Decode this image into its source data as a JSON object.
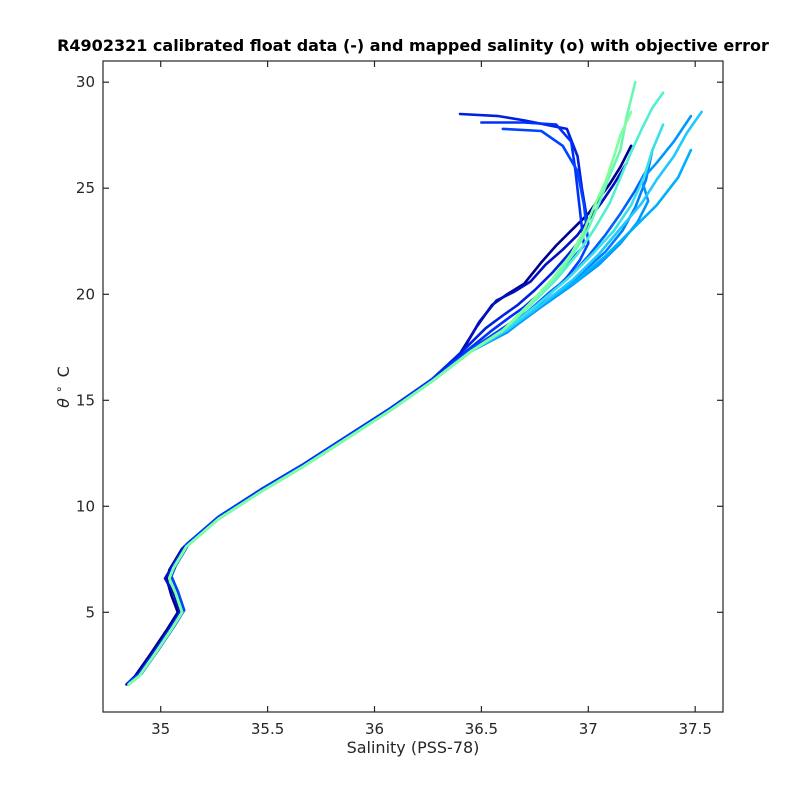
{
  "chart_data": {
    "type": "line",
    "title": "R4902321 calibrated float data (-) and mapped salinity (o) with objective error",
    "xlabel": "Salinity (PSS-78)",
    "ylabel_symbol": "θ",
    "ylabel_unit": "C",
    "xlim": [
      34.73,
      37.63
    ],
    "ylim": [
      0.3,
      31.0
    ],
    "xticks": [
      35,
      35.5,
      36,
      36.5,
      37,
      37.5
    ],
    "xtick_labels": [
      "35",
      "35.5",
      "36",
      "36.5",
      "37",
      "37.5"
    ],
    "yticks": [
      5,
      10,
      15,
      20,
      25,
      30
    ],
    "ytick_labels": [
      "5",
      "10",
      "15",
      "20",
      "25",
      "30"
    ],
    "grid": false,
    "legend": "none",
    "colormap": [
      "#00008f",
      "#0020e0",
      "#0060ff",
      "#00a0ff",
      "#20d0ff",
      "#5cf5c8",
      "#80ff9c"
    ],
    "series": [
      {
        "color": "#00008f",
        "x": [
          34.84,
          34.88,
          34.95,
          35.03,
          35.08,
          35.05,
          35.03,
          35.04,
          35.1,
          35.25,
          35.45,
          35.65,
          35.85,
          36.05,
          36.25,
          36.4,
          36.48,
          36.55,
          36.62,
          36.7,
          36.78,
          36.85,
          36.92,
          37.0,
          37.05,
          37.1,
          37.15,
          37.2
        ],
        "y": [
          1.6,
          2.0,
          3.0,
          4.2,
          5.0,
          5.8,
          6.5,
          7.0,
          8.0,
          9.3,
          10.6,
          11.8,
          13.1,
          14.4,
          15.8,
          17.2,
          18.5,
          19.5,
          20.0,
          20.5,
          21.5,
          22.3,
          23.0,
          23.8,
          24.5,
          25.2,
          26.0,
          27.0
        ]
      },
      {
        "color": "#0010c0",
        "x": [
          34.84,
          34.89,
          34.96,
          35.04,
          35.09,
          35.06,
          35.02,
          35.05,
          35.11,
          35.26,
          35.46,
          35.66,
          35.86,
          36.06,
          36.26,
          36.41,
          36.49,
          36.57,
          36.65,
          36.73,
          36.8,
          36.88,
          36.95,
          37.0,
          37.06,
          37.12,
          37.18
        ],
        "y": [
          1.6,
          2.0,
          3.0,
          4.2,
          5.0,
          5.9,
          6.6,
          7.1,
          8.1,
          9.4,
          10.7,
          11.9,
          13.2,
          14.5,
          15.9,
          17.3,
          18.7,
          19.7,
          20.1,
          20.6,
          21.4,
          22.1,
          22.8,
          23.5,
          24.3,
          25.2,
          26.2
        ]
      },
      {
        "color": "#0020e0",
        "x": [
          34.85,
          34.9,
          34.97,
          35.05,
          35.1,
          35.07,
          35.04,
          35.06,
          35.12,
          35.27,
          35.47,
          35.67,
          35.87,
          36.07,
          36.27,
          36.42,
          36.52,
          36.6,
          36.67,
          36.75,
          36.83,
          36.9,
          36.95,
          37.0,
          36.97,
          36.95,
          36.9,
          36.7,
          36.58,
          36.4
        ],
        "y": [
          1.7,
          2.1,
          3.1,
          4.3,
          5.1,
          6.0,
          6.7,
          7.2,
          8.2,
          9.5,
          10.8,
          12.0,
          13.3,
          14.6,
          16.0,
          17.4,
          18.4,
          19.0,
          19.5,
          20.2,
          21.0,
          21.8,
          22.4,
          23.2,
          25.0,
          26.5,
          27.8,
          28.2,
          28.4,
          28.5
        ]
      },
      {
        "color": "#0030ff",
        "x": [
          34.85,
          34.9,
          34.97,
          35.05,
          35.1,
          35.07,
          35.04,
          35.06,
          35.12,
          35.27,
          35.47,
          35.67,
          35.87,
          36.07,
          36.27,
          36.44,
          36.55,
          36.63,
          36.7,
          36.78,
          36.85,
          36.92,
          36.98,
          36.96,
          36.94,
          36.92,
          36.85,
          36.7,
          36.5
        ],
        "y": [
          1.7,
          2.1,
          3.1,
          4.3,
          5.1,
          6.0,
          6.7,
          7.2,
          8.2,
          9.5,
          10.8,
          12.0,
          13.3,
          14.6,
          16.0,
          17.4,
          18.3,
          18.9,
          19.4,
          20.1,
          20.9,
          21.6,
          22.3,
          24.0,
          25.8,
          27.2,
          28.0,
          28.1,
          28.1
        ]
      },
      {
        "color": "#0044ff",
        "x": [
          34.85,
          34.91,
          34.98,
          35.06,
          35.11,
          35.08,
          35.05,
          35.07,
          35.13,
          35.28,
          35.48,
          35.68,
          35.88,
          36.08,
          36.28,
          36.45,
          36.57,
          36.66,
          36.74,
          36.82,
          36.9,
          36.96,
          37.0,
          36.98,
          36.95,
          36.88,
          36.78,
          36.6
        ],
        "y": [
          1.7,
          2.1,
          3.1,
          4.3,
          5.1,
          6.0,
          6.7,
          7.2,
          8.2,
          9.5,
          10.8,
          12.0,
          13.3,
          14.6,
          16.0,
          17.4,
          18.2,
          18.8,
          19.3,
          20.0,
          20.8,
          21.6,
          22.4,
          24.2,
          25.8,
          27.0,
          27.7,
          27.8
        ]
      },
      {
        "color": "#0060ff",
        "x": [
          34.85,
          34.9,
          34.97,
          35.05,
          35.1,
          35.07,
          35.04,
          35.06,
          35.12,
          35.27,
          35.47,
          35.67,
          35.87,
          36.07,
          36.27,
          36.45,
          36.6,
          36.72,
          36.82,
          36.92,
          37.0,
          37.08,
          37.15,
          37.22,
          37.28
        ],
        "y": [
          1.6,
          2.0,
          3.0,
          4.2,
          5.0,
          5.9,
          6.6,
          7.1,
          8.1,
          9.4,
          10.7,
          11.9,
          13.2,
          14.5,
          15.9,
          17.3,
          18.2,
          19.2,
          20.1,
          20.9,
          21.8,
          22.8,
          23.8,
          24.9,
          26.0
        ]
      },
      {
        "color": "#0080ff",
        "x": [
          34.85,
          34.9,
          34.97,
          35.05,
          35.1,
          35.07,
          35.04,
          35.06,
          35.12,
          35.27,
          35.47,
          35.67,
          35.87,
          36.07,
          36.27,
          36.45,
          36.62,
          36.76,
          36.88,
          36.98,
          37.08,
          37.16,
          37.22,
          37.27,
          37.3
        ],
        "y": [
          1.6,
          2.0,
          3.0,
          4.2,
          5.0,
          5.9,
          6.6,
          7.1,
          8.1,
          9.4,
          10.7,
          11.9,
          13.2,
          14.5,
          15.9,
          17.3,
          18.2,
          19.3,
          20.2,
          21.1,
          22.0,
          23.0,
          24.1,
          25.4,
          26.8
        ]
      },
      {
        "color": "#0098ff",
        "x": [
          34.85,
          34.9,
          34.97,
          35.05,
          35.1,
          35.07,
          35.04,
          35.06,
          35.12,
          35.27,
          35.47,
          35.67,
          35.87,
          36.07,
          36.27,
          36.45,
          36.63,
          36.78,
          36.92,
          37.05,
          37.15,
          37.23,
          37.28,
          37.25,
          37.32,
          37.4,
          37.48
        ],
        "y": [
          1.6,
          2.0,
          3.0,
          4.2,
          5.0,
          5.9,
          6.6,
          7.1,
          8.1,
          9.4,
          10.7,
          11.9,
          13.2,
          14.5,
          15.9,
          17.3,
          18.3,
          19.4,
          20.4,
          21.4,
          22.4,
          23.4,
          24.4,
          25.4,
          26.2,
          27.2,
          28.4
        ]
      },
      {
        "color": "#00b0ff",
        "x": [
          34.85,
          34.9,
          34.97,
          35.05,
          35.1,
          35.07,
          35.04,
          35.06,
          35.12,
          35.27,
          35.47,
          35.67,
          35.87,
          36.07,
          36.27,
          36.45,
          36.62,
          36.78,
          36.94,
          37.08,
          37.2,
          37.32,
          37.42,
          37.48
        ],
        "y": [
          1.6,
          2.0,
          3.0,
          4.2,
          5.0,
          5.9,
          6.6,
          7.1,
          8.1,
          9.4,
          10.7,
          11.9,
          13.2,
          14.5,
          15.9,
          17.3,
          18.3,
          19.5,
          20.6,
          21.8,
          23.0,
          24.2,
          25.5,
          26.8
        ]
      },
      {
        "color": "#20c8ff",
        "x": [
          34.85,
          34.9,
          34.97,
          35.05,
          35.1,
          35.07,
          35.04,
          35.06,
          35.12,
          35.27,
          35.47,
          35.67,
          35.87,
          36.07,
          36.27,
          36.45,
          36.62,
          36.78,
          36.93,
          37.05,
          37.15,
          37.25,
          37.32,
          37.4,
          37.46,
          37.53
        ],
        "y": [
          1.6,
          2.0,
          3.0,
          4.2,
          5.0,
          5.9,
          6.6,
          7.1,
          8.1,
          9.4,
          10.7,
          11.9,
          13.2,
          14.5,
          15.9,
          17.3,
          18.3,
          19.5,
          20.7,
          21.9,
          23.1,
          24.3,
          25.4,
          26.5,
          27.6,
          28.6
        ]
      },
      {
        "color": "#3ae0e8",
        "x": [
          34.85,
          34.9,
          34.97,
          35.05,
          35.1,
          35.07,
          35.04,
          35.06,
          35.12,
          35.27,
          35.47,
          35.67,
          35.87,
          36.07,
          36.27,
          36.45,
          36.61,
          36.76,
          36.9,
          37.02,
          37.12,
          37.2,
          37.26,
          37.3,
          37.35
        ],
        "y": [
          1.6,
          2.0,
          3.0,
          4.2,
          5.0,
          5.9,
          6.6,
          7.1,
          8.1,
          9.4,
          10.7,
          11.9,
          13.2,
          14.5,
          15.9,
          17.3,
          18.3,
          19.5,
          20.7,
          21.9,
          23.0,
          24.2,
          25.5,
          26.8,
          28.0
        ]
      },
      {
        "color": "#50f0d0",
        "x": [
          34.85,
          34.9,
          34.97,
          35.05,
          35.1,
          35.07,
          35.04,
          35.06,
          35.12,
          35.27,
          35.47,
          35.67,
          35.87,
          36.07,
          36.27,
          36.45,
          36.6,
          36.73,
          36.85,
          36.95,
          37.03,
          37.1,
          37.15,
          37.2,
          37.25,
          37.3,
          37.35
        ],
        "y": [
          1.6,
          2.0,
          3.0,
          4.2,
          5.0,
          5.9,
          6.6,
          7.1,
          8.1,
          9.4,
          10.7,
          11.9,
          13.2,
          14.5,
          15.9,
          17.3,
          18.3,
          19.5,
          20.7,
          21.9,
          23.1,
          24.3,
          25.5,
          26.7,
          27.8,
          28.8,
          29.5
        ]
      },
      {
        "color": "#68f8b4",
        "x": [
          34.85,
          34.9,
          34.97,
          35.05,
          35.1,
          35.07,
          35.04,
          35.06,
          35.12,
          35.27,
          35.47,
          35.67,
          35.87,
          36.07,
          36.27,
          36.45,
          36.6,
          36.73,
          36.84,
          36.93,
          37.0,
          37.05,
          37.1,
          37.15,
          37.18,
          37.22
        ],
        "y": [
          1.6,
          2.0,
          3.0,
          4.2,
          5.0,
          5.9,
          6.6,
          7.1,
          8.1,
          9.4,
          10.7,
          11.9,
          13.2,
          14.5,
          15.9,
          17.3,
          18.3,
          19.5,
          20.7,
          21.9,
          23.1,
          24.3,
          25.6,
          26.8,
          28.4,
          30.0
        ]
      },
      {
        "color": "#80ff9c",
        "x": [
          34.85,
          34.9,
          34.97,
          35.05,
          35.1,
          35.07,
          35.04,
          35.06,
          35.12,
          35.27,
          35.47,
          35.67,
          35.87,
          36.07,
          36.27,
          36.45,
          36.6,
          36.72,
          36.83,
          36.92,
          36.98,
          37.03,
          37.08,
          37.12,
          37.15,
          37.2
        ],
        "y": [
          1.6,
          2.0,
          3.0,
          4.2,
          5.0,
          5.9,
          6.6,
          7.1,
          8.1,
          9.4,
          10.7,
          11.9,
          13.2,
          14.5,
          15.9,
          17.3,
          18.3,
          19.5,
          20.7,
          21.9,
          23.0,
          24.2,
          25.3,
          26.5,
          27.5,
          28.6
        ]
      }
    ]
  }
}
